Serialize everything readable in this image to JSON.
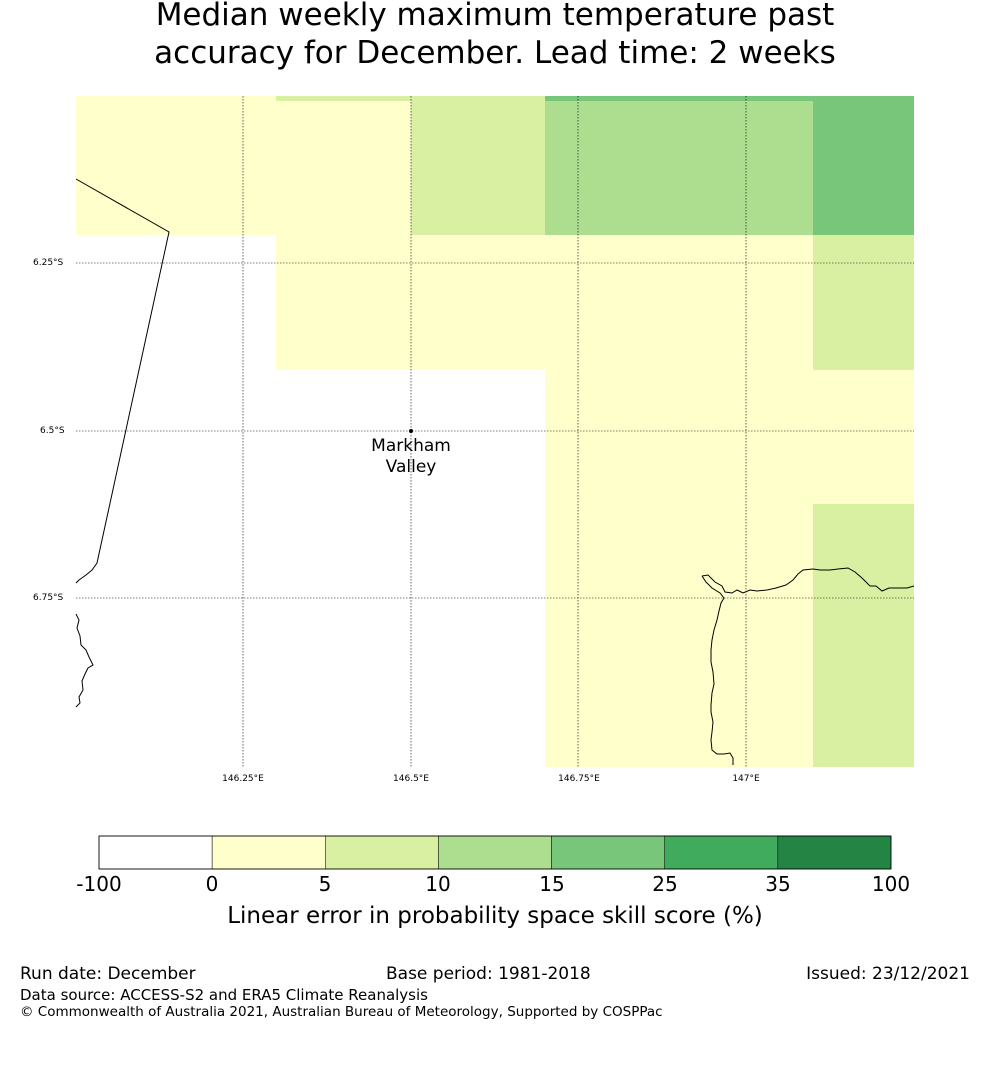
{
  "title": {
    "line1": "Median weekly maximum temperature past",
    "line2": "accuracy for December. Lead time: 2 weeks"
  },
  "map": {
    "lat_labels": [
      "6.25°S",
      "6.5°S",
      "6.75°S"
    ],
    "lon_labels": [
      "146.25°E",
      "146.5°E",
      "146.75°E",
      "147°E"
    ],
    "place": {
      "name_line1": "Markham",
      "name_line2": "Valley"
    }
  },
  "colorbar": {
    "ticks": [
      "-100",
      "0",
      "5",
      "10",
      "15",
      "25",
      "35",
      "100"
    ],
    "colors": [
      "#ffffff",
      "#ffffcc",
      "#d9f0a3",
      "#addd8e",
      "#78c679",
      "#41ab5d",
      "#238443"
    ],
    "label": "Linear error in probability space skill score (%)"
  },
  "footer": {
    "run_date": "Run date: December",
    "base_period": "Base period: 1981-2018",
    "issued": "Issued: 23/12/2021",
    "data_source": "Data source: ACCESS-S2 and ERA5 Climate Reanalysis",
    "copyright": "© Commonwealth of Australia 2021, Australian Bureau of Meteorology, Supported by COSPPac"
  }
}
